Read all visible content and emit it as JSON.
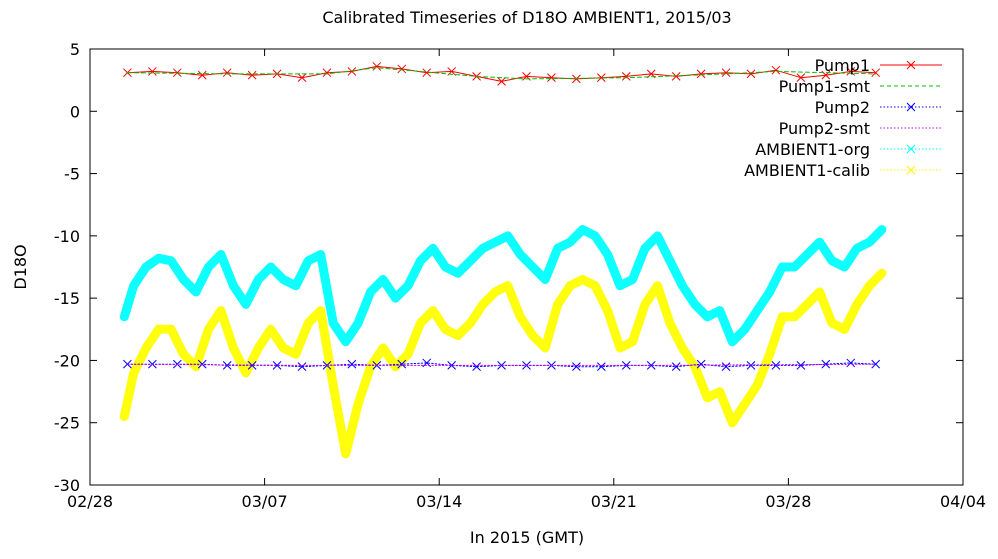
{
  "chart_data": {
    "type": "scatter",
    "title": "Calibrated Timeseries of D18O AMBIENT1, 2015/03",
    "xlabel": "In 2015 (GMT)",
    "ylabel": "D18O",
    "xlim": [
      "2015-02-28",
      "2015-04-04"
    ],
    "ylim": [
      -30,
      5
    ],
    "x_ticks": [
      "02/28",
      "03/07",
      "03/14",
      "03/21",
      "03/28",
      "04/04"
    ],
    "y_ticks": [
      "5",
      "0",
      "-5",
      "-10",
      "-15",
      "-20",
      "-25",
      "-30"
    ],
    "grid": false,
    "legend_position": "top-right",
    "series": [
      {
        "name": "Pump1",
        "color": "#ff0000",
        "marker": "x",
        "line": "solid",
        "x": [
          "2015-03-01T12:00",
          "2015-03-02T12:00",
          "2015-03-03T12:00",
          "2015-03-04T12:00",
          "2015-03-05T12:00",
          "2015-03-06T12:00",
          "2015-03-07T12:00",
          "2015-03-08T12:00",
          "2015-03-09T12:00",
          "2015-03-10T12:00",
          "2015-03-11T12:00",
          "2015-03-12T12:00",
          "2015-03-13T12:00",
          "2015-03-14T12:00",
          "2015-03-15T12:00",
          "2015-03-16T12:00",
          "2015-03-17T12:00",
          "2015-03-18T12:00",
          "2015-03-19T12:00",
          "2015-03-20T12:00",
          "2015-03-21T12:00",
          "2015-03-22T12:00",
          "2015-03-23T12:00",
          "2015-03-24T12:00",
          "2015-03-25T12:00",
          "2015-03-26T12:00",
          "2015-03-27T12:00",
          "2015-03-28T12:00",
          "2015-03-29T12:00",
          "2015-03-30T12:00",
          "2015-03-31T12:00"
        ],
        "y": [
          3.1,
          3.2,
          3.1,
          2.9,
          3.1,
          2.9,
          3.0,
          2.7,
          3.1,
          3.2,
          3.6,
          3.4,
          3.1,
          3.2,
          2.8,
          2.4,
          2.8,
          2.7,
          2.6,
          2.7,
          2.8,
          3.0,
          2.8,
          3.0,
          3.1,
          3.0,
          3.3,
          2.7,
          2.9,
          3.2,
          3.1
        ]
      },
      {
        "name": "Pump1-smt",
        "color": "#00c000",
        "marker": "none",
        "line": "dashed",
        "x": [
          "2015-03-01T12:00",
          "2015-03-05T12:00",
          "2015-03-09T12:00",
          "2015-03-11T12:00",
          "2015-03-15T12:00",
          "2015-03-17T12:00",
          "2015-03-21T12:00",
          "2015-03-25T12:00",
          "2015-03-27T12:00",
          "2015-03-31T12:00"
        ],
        "y": [
          3.1,
          3.0,
          3.0,
          3.5,
          2.8,
          2.6,
          2.7,
          3.0,
          3.2,
          3.0
        ]
      },
      {
        "name": "Pump2",
        "color": "#0000ff",
        "marker": "x",
        "line": "dotted",
        "x": [
          "2015-03-01T12:00",
          "2015-03-02T12:00",
          "2015-03-03T12:00",
          "2015-03-04T12:00",
          "2015-03-05T12:00",
          "2015-03-06T12:00",
          "2015-03-07T12:00",
          "2015-03-08T12:00",
          "2015-03-09T12:00",
          "2015-03-10T12:00",
          "2015-03-11T12:00",
          "2015-03-12T12:00",
          "2015-03-13T12:00",
          "2015-03-14T12:00",
          "2015-03-15T12:00",
          "2015-03-16T12:00",
          "2015-03-17T12:00",
          "2015-03-18T12:00",
          "2015-03-19T12:00",
          "2015-03-20T12:00",
          "2015-03-21T12:00",
          "2015-03-22T12:00",
          "2015-03-23T12:00",
          "2015-03-24T12:00",
          "2015-03-25T12:00",
          "2015-03-26T12:00",
          "2015-03-27T12:00",
          "2015-03-28T12:00",
          "2015-03-29T12:00",
          "2015-03-30T12:00",
          "2015-03-31T12:00"
        ],
        "y": [
          -20.3,
          -20.3,
          -20.3,
          -20.3,
          -20.4,
          -20.4,
          -20.4,
          -20.5,
          -20.4,
          -20.3,
          -20.4,
          -20.3,
          -20.2,
          -20.4,
          -20.5,
          -20.4,
          -20.4,
          -20.4,
          -20.5,
          -20.5,
          -20.4,
          -20.4,
          -20.5,
          -20.3,
          -20.5,
          -20.4,
          -20.4,
          -20.4,
          -20.3,
          -20.2,
          -20.3
        ]
      },
      {
        "name": "Pump2-smt",
        "color": "#c000ff",
        "marker": "none",
        "line": "dotted",
        "x": [
          "2015-03-01T12:00",
          "2015-03-08T12:00",
          "2015-03-15T12:00",
          "2015-03-22T12:00",
          "2015-03-31T12:00"
        ],
        "y": [
          -20.3,
          -20.4,
          -20.4,
          -20.4,
          -20.3
        ]
      },
      {
        "name": "AMBIENT1-org",
        "color": "#00ffff",
        "marker": "x",
        "line": "dotted",
        "x": [
          "2015-03-01T09:00",
          "2015-03-01T18:00",
          "2015-03-02T06:00",
          "2015-03-02T18:00",
          "2015-03-03T06:00",
          "2015-03-03T18:00",
          "2015-03-04T06:00",
          "2015-03-04T18:00",
          "2015-03-05T06:00",
          "2015-03-05T18:00",
          "2015-03-06T06:00",
          "2015-03-06T18:00",
          "2015-03-07T06:00",
          "2015-03-07T18:00",
          "2015-03-08T06:00",
          "2015-03-08T18:00",
          "2015-03-09T06:00",
          "2015-03-09T18:00",
          "2015-03-10T06:00",
          "2015-03-10T18:00",
          "2015-03-11T06:00",
          "2015-03-11T18:00",
          "2015-03-12T06:00",
          "2015-03-12T18:00",
          "2015-03-13T06:00",
          "2015-03-13T18:00",
          "2015-03-14T06:00",
          "2015-03-14T18:00",
          "2015-03-15T06:00",
          "2015-03-15T18:00",
          "2015-03-16T06:00",
          "2015-03-16T18:00",
          "2015-03-17T06:00",
          "2015-03-17T18:00",
          "2015-03-18T06:00",
          "2015-03-18T18:00",
          "2015-03-19T06:00",
          "2015-03-19T18:00",
          "2015-03-20T06:00",
          "2015-03-20T18:00",
          "2015-03-21T06:00",
          "2015-03-21T18:00",
          "2015-03-22T06:00",
          "2015-03-22T18:00",
          "2015-03-23T06:00",
          "2015-03-23T18:00",
          "2015-03-24T06:00",
          "2015-03-24T18:00",
          "2015-03-25T06:00",
          "2015-03-25T18:00",
          "2015-03-26T06:00",
          "2015-03-26T18:00",
          "2015-03-27T06:00",
          "2015-03-27T18:00",
          "2015-03-28T06:00",
          "2015-03-28T18:00",
          "2015-03-29T06:00",
          "2015-03-29T18:00",
          "2015-03-30T06:00",
          "2015-03-30T18:00",
          "2015-03-31T06:00",
          "2015-03-31T18:00"
        ],
        "y": [
          -16.5,
          -14.0,
          -12.5,
          -11.8,
          -12.0,
          -13.5,
          -14.5,
          -12.5,
          -11.5,
          -14.0,
          -15.5,
          -13.5,
          -12.5,
          -13.5,
          -14.0,
          -12.0,
          -11.5,
          -17.0,
          -18.5,
          -17.0,
          -14.5,
          -13.5,
          -15.0,
          -14.0,
          -12.0,
          -11.0,
          -12.5,
          -13.0,
          -12.0,
          -11.0,
          -10.5,
          -10.0,
          -11.5,
          -12.5,
          -13.5,
          -11.0,
          -10.5,
          -9.5,
          -10.0,
          -11.5,
          -14.0,
          -13.5,
          -11.0,
          -10.0,
          -12.0,
          -14.0,
          -15.5,
          -16.5,
          -16.0,
          -18.5,
          -17.5,
          -16.0,
          -14.5,
          -12.5,
          -12.5,
          -11.5,
          -10.5,
          -12.0,
          -12.5,
          -11.0,
          -10.5,
          -9.5
        ]
      },
      {
        "name": "AMBIENT1-calib",
        "color": "#ffff00",
        "marker": "x",
        "line": "dotted",
        "x": [
          "2015-03-01T09:00",
          "2015-03-01T18:00",
          "2015-03-02T06:00",
          "2015-03-02T18:00",
          "2015-03-03T06:00",
          "2015-03-03T18:00",
          "2015-03-04T06:00",
          "2015-03-04T18:00",
          "2015-03-05T06:00",
          "2015-03-05T18:00",
          "2015-03-06T06:00",
          "2015-03-06T18:00",
          "2015-03-07T06:00",
          "2015-03-07T18:00",
          "2015-03-08T06:00",
          "2015-03-08T18:00",
          "2015-03-09T06:00",
          "2015-03-09T18:00",
          "2015-03-10T06:00",
          "2015-03-10T18:00",
          "2015-03-11T06:00",
          "2015-03-11T18:00",
          "2015-03-12T06:00",
          "2015-03-12T18:00",
          "2015-03-13T06:00",
          "2015-03-13T18:00",
          "2015-03-14T06:00",
          "2015-03-14T18:00",
          "2015-03-15T06:00",
          "2015-03-15T18:00",
          "2015-03-16T06:00",
          "2015-03-16T18:00",
          "2015-03-17T06:00",
          "2015-03-17T18:00",
          "2015-03-18T06:00",
          "2015-03-18T18:00",
          "2015-03-19T06:00",
          "2015-03-19T18:00",
          "2015-03-20T06:00",
          "2015-03-20T18:00",
          "2015-03-21T06:00",
          "2015-03-21T18:00",
          "2015-03-22T06:00",
          "2015-03-22T18:00",
          "2015-03-23T06:00",
          "2015-03-23T18:00",
          "2015-03-24T06:00",
          "2015-03-24T18:00",
          "2015-03-25T06:00",
          "2015-03-25T18:00",
          "2015-03-26T06:00",
          "2015-03-26T18:00",
          "2015-03-27T06:00",
          "2015-03-27T18:00",
          "2015-03-28T06:00",
          "2015-03-28T18:00",
          "2015-03-29T06:00",
          "2015-03-29T18:00",
          "2015-03-30T06:00",
          "2015-03-30T18:00",
          "2015-03-31T06:00",
          "2015-03-31T18:00"
        ],
        "y": [
          -24.5,
          -21.0,
          -19.0,
          -17.5,
          -17.5,
          -19.5,
          -20.5,
          -17.5,
          -16.0,
          -19.0,
          -21.0,
          -19.0,
          -17.5,
          -19.0,
          -19.5,
          -17.0,
          -16.0,
          -22.0,
          -27.5,
          -23.5,
          -20.5,
          -19.0,
          -20.5,
          -19.5,
          -17.0,
          -16.0,
          -17.5,
          -18.0,
          -17.0,
          -15.5,
          -14.5,
          -14.0,
          -16.5,
          -18.0,
          -19.0,
          -15.5,
          -14.0,
          -13.5,
          -14.0,
          -16.0,
          -19.0,
          -18.5,
          -15.5,
          -14.0,
          -17.0,
          -19.0,
          -20.5,
          -23.0,
          -22.5,
          -25.0,
          -23.5,
          -22.0,
          -19.5,
          -16.5,
          -16.5,
          -15.5,
          -14.5,
          -17.0,
          -17.5,
          -15.5,
          -14.0,
          -13.0
        ]
      }
    ]
  }
}
